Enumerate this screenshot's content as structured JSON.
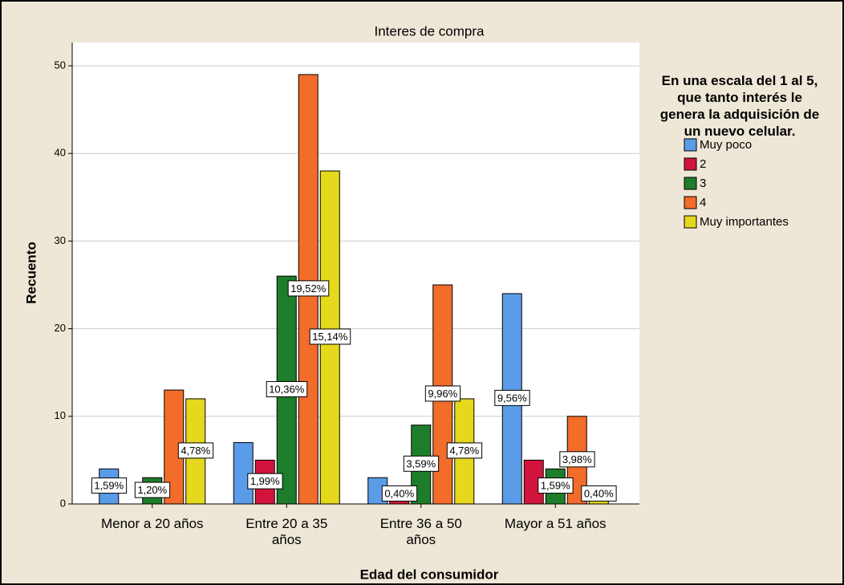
{
  "chart_data": {
    "type": "bar",
    "title": "Interes de compra",
    "x_label": "Edad del consumidor",
    "y_label": "Recuento",
    "legend_title": "En una escala del 1 al 5, que tanto interés le genera la adquisición de un nuevo celular.",
    "categories": [
      "Menor a 20 años",
      "Entre 20 a 35 años",
      "Entre 36 a 50 años",
      "Mayor a 51 años"
    ],
    "series": [
      {
        "name": "Muy poco",
        "color": "#5b9ce8",
        "values": [
          4,
          7,
          3,
          24
        ],
        "value_labels": [
          "1,59%",
          null,
          null,
          "9,56%"
        ]
      },
      {
        "name": "2",
        "color": "#d2143c",
        "values": [
          0,
          5,
          1,
          5
        ],
        "value_labels": [
          null,
          "1,99%",
          "0,40%",
          null
        ]
      },
      {
        "name": "3",
        "color": "#1e7d2a",
        "values": [
          3,
          26,
          9,
          4
        ],
        "value_labels": [
          "1,20%",
          "10,36%",
          "3,59%",
          "1,59%"
        ]
      },
      {
        "name": "4",
        "color": "#f26c2a",
        "values": [
          13,
          49,
          25,
          10
        ],
        "value_labels": [
          null,
          "19,52%",
          "9,96%",
          "3,98%"
        ]
      },
      {
        "name": "Muy importantes",
        "color": "#e6d81c",
        "values": [
          12,
          38,
          12,
          1
        ],
        "value_labels": [
          "4,78%",
          "15,14%",
          "4,78%",
          "0,40%"
        ]
      }
    ],
    "ylim": [
      0,
      50
    ],
    "yticks": [
      0,
      10,
      20,
      30,
      40,
      50
    ],
    "grid": true,
    "legend": "right"
  }
}
